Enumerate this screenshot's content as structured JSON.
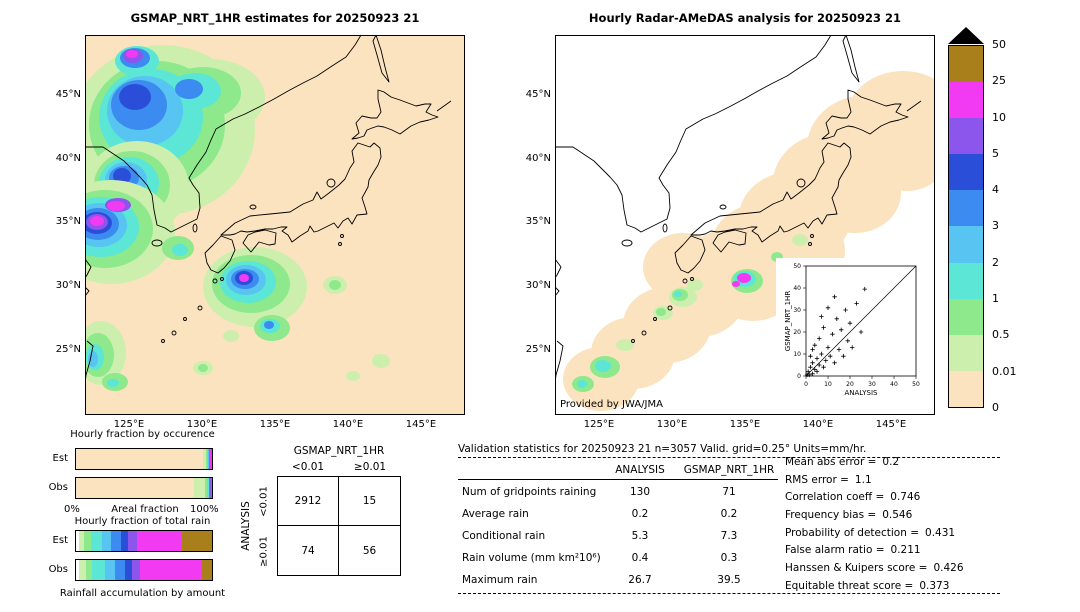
{
  "chart_data": {
    "type": "heatmap",
    "units": "mm/hr",
    "maps": {
      "left": {
        "title": "GSMAP_NRT_1HR estimates for 20250923 21",
        "background": "#FBE3C0",
        "blobs": [
          [
            "#CDEFAE",
            78,
            95,
            92,
            85
          ],
          [
            "#CDEFAE",
            125,
            62,
            55,
            38
          ],
          [
            "#8DE98B",
            72,
            90,
            68,
            64
          ],
          [
            "#8DE98B",
            118,
            58,
            38,
            26
          ],
          [
            "#5CE6D5",
            66,
            82,
            52,
            48
          ],
          [
            "#5CE6D5",
            110,
            56,
            26,
            18
          ],
          [
            "#57C4F2",
            60,
            76,
            38,
            35
          ],
          [
            "#3B8BF0",
            54,
            70,
            28,
            25
          ],
          [
            "#3B8BF0",
            104,
            54,
            14,
            10
          ],
          [
            "#2B4ED8",
            50,
            62,
            16,
            13
          ],
          [
            "#5CE6D5",
            52,
            26,
            22,
            15
          ],
          [
            "#3B8BF0",
            50,
            23,
            15,
            10
          ],
          [
            "#8C55EC",
            48,
            21,
            10,
            7
          ],
          [
            "#F23AF2",
            47,
            19,
            6,
            4
          ],
          [
            "#CDEFAE",
            52,
            152,
            52,
            46
          ],
          [
            "#8DE98B",
            47,
            150,
            38,
            34
          ],
          [
            "#5CE6D5",
            44,
            148,
            30,
            26
          ],
          [
            "#57C4F2",
            41,
            145,
            21,
            18
          ],
          [
            "#3B8BF0",
            39,
            143,
            15,
            12
          ],
          [
            "#2B4ED8",
            37,
            141,
            9,
            8
          ],
          [
            "#CDEFAE",
            26,
            197,
            64,
            52
          ],
          [
            "#8DE98B",
            20,
            194,
            48,
            39
          ],
          [
            "#5CE6D5",
            16,
            192,
            38,
            30
          ],
          [
            "#57C4F2",
            14,
            190,
            28,
            22
          ],
          [
            "#3B8BF0",
            13,
            189,
            21,
            16
          ],
          [
            "#2B4ED8",
            12,
            188,
            15,
            11
          ],
          [
            "#8C55EC",
            12,
            187,
            11,
            8
          ],
          [
            "#F23AF2",
            12,
            186,
            7,
            5
          ],
          [
            "#8C55EC",
            33,
            170,
            13,
            7
          ],
          [
            "#F23AF2",
            31,
            171,
            9,
            5
          ],
          [
            "#8DE98B",
            93,
            213,
            16,
            12
          ],
          [
            "#5CE6D5",
            95,
            215,
            8,
            6
          ],
          [
            "#CDEFAE",
            170,
            252,
            52,
            40
          ],
          [
            "#8DE98B",
            166,
            249,
            39,
            29
          ],
          [
            "#5CE6D5",
            163,
            247,
            28,
            21
          ],
          [
            "#57C4F2",
            161,
            245,
            20,
            15
          ],
          [
            "#3B8BF0",
            160,
            244,
            14,
            10
          ],
          [
            "#2B4ED8",
            159,
            243,
            9,
            7
          ],
          [
            "#F23AF2",
            159,
            243,
            5,
            4
          ],
          [
            "#8DE98B",
            187,
            293,
            18,
            13
          ],
          [
            "#5CE6D5",
            185,
            291,
            10,
            7
          ],
          [
            "#3B8BF0",
            184,
            290,
            5,
            4
          ],
          [
            "#CDEFAE",
            16,
            318,
            25,
            32
          ],
          [
            "#8DE98B",
            13,
            320,
            16,
            22
          ],
          [
            "#5CE6D5",
            10,
            322,
            9,
            13
          ],
          [
            "#57C4F2",
            8,
            324,
            5,
            8
          ],
          [
            "#8DE98B",
            30,
            347,
            13,
            9
          ],
          [
            "#5CE6D5",
            28,
            348,
            6,
            4
          ],
          [
            "#CDEFAE",
            250,
            250,
            12,
            9
          ],
          [
            "#8DE98B",
            250,
            250,
            6,
            5
          ],
          [
            "#CDEFAE",
            296,
            326,
            9,
            7
          ],
          [
            "#CDEFAE",
            268,
            341,
            7,
            5
          ],
          [
            "#CDEFAE",
            118,
            333,
            10,
            7
          ],
          [
            "#8DE98B",
            118,
            333,
            5,
            4
          ],
          [
            "#CDEFAE",
            146,
            301,
            8,
            6
          ]
        ]
      },
      "right": {
        "title": "Hourly Radar-AMeDAS analysis for 20250923 21",
        "background": "#FFFFFF",
        "credit": "Provided by JWA/JMA",
        "blobs": [
          [
            "#FBE3C0",
            348,
            82,
            56,
            46
          ],
          [
            "#FBE3C0",
            312,
            112,
            60,
            52
          ],
          [
            "#FBE3C0",
            276,
            148,
            58,
            50
          ],
          [
            "#FBE3C0",
            240,
            182,
            56,
            46
          ],
          [
            "#FBE3C0",
            208,
            212,
            52,
            44
          ],
          [
            "#FBE3C0",
            176,
            236,
            50,
            42
          ],
          [
            "#FBE3C0",
            144,
            262,
            46,
            40
          ],
          [
            "#FBE3C0",
            112,
            290,
            44,
            38
          ],
          [
            "#FBE3C0",
            78,
            318,
            42,
            36
          ],
          [
            "#FBE3C0",
            46,
            344,
            38,
            32
          ],
          [
            "#FBE3C0",
            242,
            216,
            48,
            42
          ],
          [
            "#FBE3C0",
            198,
            248,
            44,
            38
          ],
          [
            "#FBE3C0",
            158,
            242,
            44,
            36
          ],
          [
            "#FBE3C0",
            128,
            232,
            40,
            34
          ],
          [
            "#FBE3C0",
            352,
            118,
            42,
            38
          ],
          [
            "#FBE3C0",
            300,
            158,
            46,
            40
          ],
          [
            "#CDEFAE",
            128,
            262,
            14,
            10
          ],
          [
            "#8DE98B",
            125,
            260,
            8,
            6
          ],
          [
            "#5CE6D5",
            123,
            259,
            4,
            3
          ],
          [
            "#CDEFAE",
            108,
            278,
            10,
            7
          ],
          [
            "#8DE98B",
            106,
            277,
            5,
            4
          ],
          [
            "#CDEFAE",
            140,
            250,
            8,
            6
          ],
          [
            "#8DE98B",
            192,
            246,
            16,
            12
          ],
          [
            "#5CE6D5",
            190,
            244,
            11,
            8
          ],
          [
            "#F23AF2",
            189,
            243,
            7,
            5
          ],
          [
            "#F23AF2",
            181,
            249,
            4,
            3
          ],
          [
            "#8DE98B",
            50,
            332,
            15,
            11
          ],
          [
            "#5CE6D5",
            48,
            331,
            8,
            6
          ],
          [
            "#8DE98B",
            28,
            349,
            11,
            8
          ],
          [
            "#5CE6D5",
            27,
            349,
            5,
            4
          ],
          [
            "#CDEFAE",
            70,
            310,
            9,
            6
          ],
          [
            "#8DE98B",
            222,
            222,
            6,
            5
          ],
          [
            "#CDEFAE",
            245,
            205,
            8,
            6
          ]
        ]
      }
    },
    "axes": {
      "lat_ticks": [
        "45°N",
        "40°N",
        "35°N",
        "30°N",
        "25°N"
      ],
      "lon_ticks": [
        "125°E",
        "130°E",
        "135°E",
        "140°E",
        "145°E"
      ]
    },
    "colorbar": {
      "levels": [
        "0",
        "0.01",
        "0.5",
        "1",
        "2",
        "3",
        "4",
        "5",
        "10",
        "25",
        "50"
      ],
      "colors": [
        "#FBE3C0",
        "#CDEFAE",
        "#8DE98B",
        "#5CE6D5",
        "#57C4F2",
        "#3B8BF0",
        "#2B4ED8",
        "#8C55EC",
        "#F23AF2",
        "#A97F1C"
      ],
      "overflow_color": "#000000"
    },
    "scatter_inset": {
      "xlabel": "ANALYSIS",
      "ylabel": "GSMAP_NRT_1HR",
      "xlim": [
        0,
        50
      ],
      "ylim": [
        0,
        50
      ],
      "ticks": [
        0,
        10,
        20,
        30,
        40,
        50
      ],
      "points": [
        [
          0.5,
          0.5
        ],
        [
          1,
          2
        ],
        [
          1.5,
          0.5
        ],
        [
          2,
          4
        ],
        [
          2,
          9
        ],
        [
          3,
          1
        ],
        [
          3,
          6
        ],
        [
          3,
          12
        ],
        [
          4,
          3
        ],
        [
          4,
          14
        ],
        [
          5,
          2
        ],
        [
          5,
          8
        ],
        [
          6,
          5
        ],
        [
          6,
          17
        ],
        [
          7,
          10
        ],
        [
          7,
          27
        ],
        [
          8,
          4
        ],
        [
          8,
          22
        ],
        [
          9,
          7
        ],
        [
          10,
          13
        ],
        [
          10,
          31
        ],
        [
          11,
          9
        ],
        [
          12,
          19
        ],
        [
          13,
          6
        ],
        [
          13,
          36
        ],
        [
          14,
          26
        ],
        [
          15,
          12
        ],
        [
          16,
          21
        ],
        [
          17,
          9
        ],
        [
          18,
          30
        ],
        [
          19,
          16
        ],
        [
          20,
          24
        ],
        [
          21,
          13
        ],
        [
          23,
          33
        ],
        [
          25,
          20
        ],
        [
          26.7,
          39.5
        ]
      ]
    },
    "occurrence_bars": {
      "title": "Hourly fraction by occurence",
      "rows": [
        "Est",
        "Obs"
      ],
      "axis_left": "0%",
      "axis_label": "Areal fraction",
      "axis_right": "100%",
      "est": [
        [
          "#FBE3C0",
          93.5
        ],
        [
          "#CDEFAE",
          2.0
        ],
        [
          "#8DE98B",
          1.0
        ],
        [
          "#5CE6D5",
          0.7
        ],
        [
          "#57C4F2",
          0.5
        ],
        [
          "#3B8BF0",
          0.5
        ],
        [
          "#8C55EC",
          0.4
        ],
        [
          "#F23AF2",
          0.7
        ],
        [
          "#A97F1C",
          0.7
        ]
      ],
      "obs": [
        [
          "#FBE3C0",
          86.5
        ],
        [
          "#CDEFAE",
          8.0
        ],
        [
          "#8DE98B",
          2.0
        ],
        [
          "#5CE6D5",
          1.0
        ],
        [
          "#57C4F2",
          0.6
        ],
        [
          "#3B8BF0",
          0.5
        ],
        [
          "#8C55EC",
          0.4
        ],
        [
          "#F23AF2",
          0.5
        ],
        [
          "#A97F1C",
          0.5
        ]
      ]
    },
    "total_rain_bars": {
      "title": "Hourly fraction of total rain",
      "rows": [
        "Est",
        "Obs"
      ],
      "footer": "Rainfall accumulation by amount",
      "est": [
        [
          "#FFFFFF",
          2
        ],
        [
          "#CDEFAE",
          4
        ],
        [
          "#8DE98B",
          5
        ],
        [
          "#5CE6D5",
          8
        ],
        [
          "#57C4F2",
          7
        ],
        [
          "#3B8BF0",
          7
        ],
        [
          "#2B4ED8",
          5
        ],
        [
          "#8C55EC",
          7
        ],
        [
          "#F23AF2",
          33
        ],
        [
          "#A97F1C",
          22
        ]
      ],
      "obs": [
        [
          "#FFFFFF",
          2
        ],
        [
          "#CDEFAE",
          5
        ],
        [
          "#8DE98B",
          5
        ],
        [
          "#5CE6D5",
          9
        ],
        [
          "#57C4F2",
          8
        ],
        [
          "#3B8BF0",
          7
        ],
        [
          "#2B4ED8",
          5
        ],
        [
          "#8C55EC",
          6
        ],
        [
          "#F23AF2",
          46
        ],
        [
          "#A97F1C",
          7
        ]
      ]
    },
    "contingency": {
      "col_title": "GSMAP_NRT_1HR",
      "row_title": "ANALYSIS",
      "col_labels": [
        "<0.01",
        "≥0.01"
      ],
      "row_labels": [
        "<0.01",
        "≥0.01"
      ],
      "values": [
        [
          "2912",
          "15"
        ],
        [
          "74",
          "56"
        ]
      ]
    },
    "validation": {
      "title": "Validation statistics for 20250923 21  n=3057 Valid. grid=0.25° Units=mm/hr.",
      "columns": [
        "ANALYSIS",
        "GSMAP_NRT_1HR"
      ],
      "rows": [
        {
          "label": "Num of gridpoints raining",
          "analysis": "130",
          "gsmap": "71"
        },
        {
          "label": "Average rain",
          "analysis": "0.2",
          "gsmap": "0.2"
        },
        {
          "label": "Conditional rain",
          "analysis": "5.3",
          "gsmap": "7.3"
        },
        {
          "label": "Rain volume (mm km²10⁶)",
          "analysis": "0.4",
          "gsmap": "0.3"
        },
        {
          "label": "Maximum rain",
          "analysis": "26.7",
          "gsmap": "39.5"
        }
      ],
      "scores": [
        {
          "label": "Mean abs error =",
          "value": "0.2"
        },
        {
          "label": "RMS error =",
          "value": "1.1"
        },
        {
          "label": "Correlation coeff =",
          "value": "0.746"
        },
        {
          "label": "Frequency bias =",
          "value": "0.546"
        },
        {
          "label": "Probability of detection =",
          "value": "0.431"
        },
        {
          "label": "False alarm ratio =",
          "value": "0.211"
        },
        {
          "label": "Hanssen & Kuipers score =",
          "value": "0.426"
        },
        {
          "label": "Equitable threat score =",
          "value": "0.373"
        }
      ]
    }
  }
}
